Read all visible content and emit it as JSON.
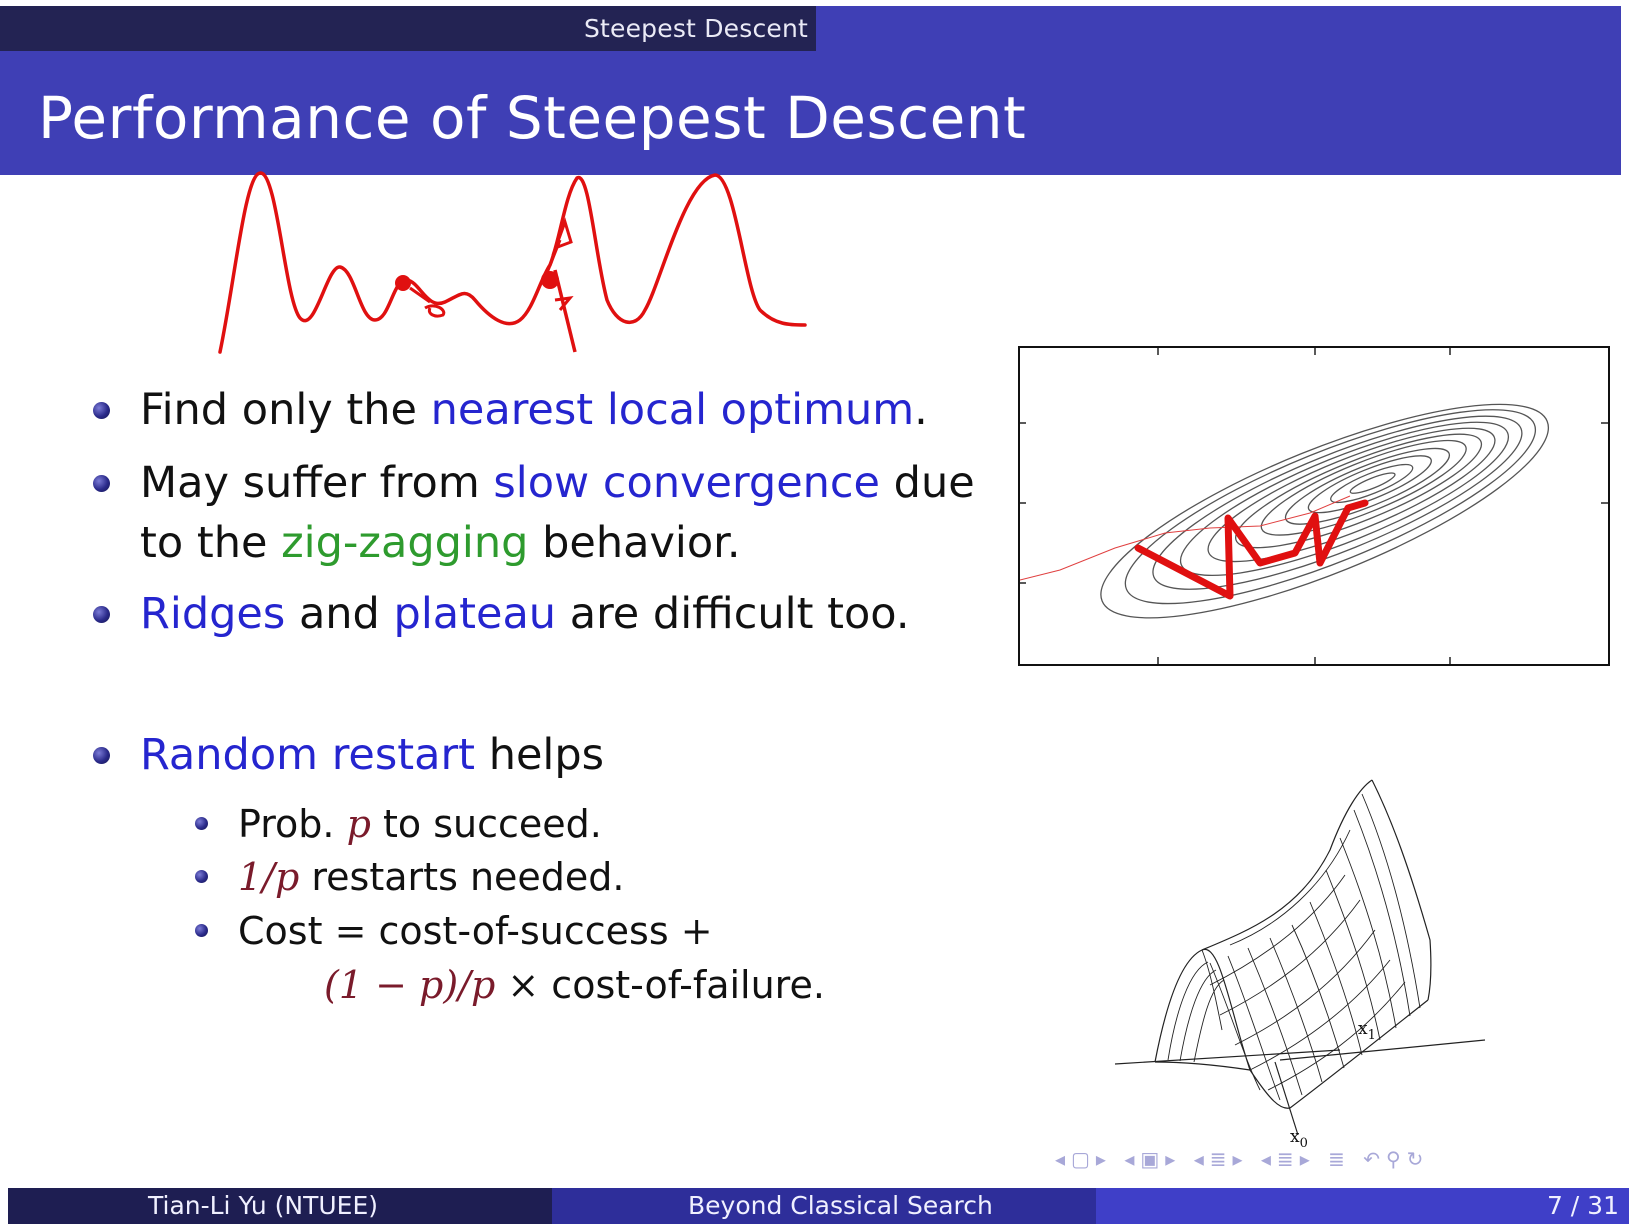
{
  "header": {
    "section": "Steepest Descent",
    "title": "Performance of Steepest Descent"
  },
  "bullets": {
    "b1": {
      "pre": "Find only the ",
      "hl": "nearest local optimum",
      "post": "."
    },
    "b2": {
      "pre": "May suffer from ",
      "hl": "slow convergence",
      "mid": " due",
      "line2_pre": "to the ",
      "hl2": "zig-zagging",
      "post": " behavior."
    },
    "b3": {
      "hl1": "Ridges",
      "mid": " and ",
      "hl2": "plateau",
      "post": " are difficult too."
    },
    "b4": {
      "hl": "Random restart",
      "post": " helps"
    }
  },
  "subbullets": {
    "s1": {
      "pre": "Prob. ",
      "math": "p",
      "post": " to succeed."
    },
    "s2": {
      "math": "1/p",
      "post": " restarts needed."
    },
    "s3": {
      "pre": "Cost ",
      "eq": "=",
      "post": " cost-of-success ",
      "plus": "+"
    },
    "s3b": {
      "math": "(1 − p)/p",
      "times": "×",
      "post": " cost-of-failure."
    }
  },
  "figures": {
    "surface_axis_x1": "x",
    "surface_axis_x1_sub": "1",
    "surface_axis_x0": "x",
    "surface_axis_x0_sub": "0",
    "annotation_color": "#e01010"
  },
  "footer": {
    "author": "Tian-Li Yu  (NTUEE)",
    "talk": "Beyond Classical Search",
    "page": "7 / 31"
  },
  "colors": {
    "title_bar": "#3f3fb5",
    "section_bar": "#232353",
    "highlight_blue": "#2525cf",
    "highlight_green": "#2e9b2e",
    "math": "#7a1b2b"
  }
}
